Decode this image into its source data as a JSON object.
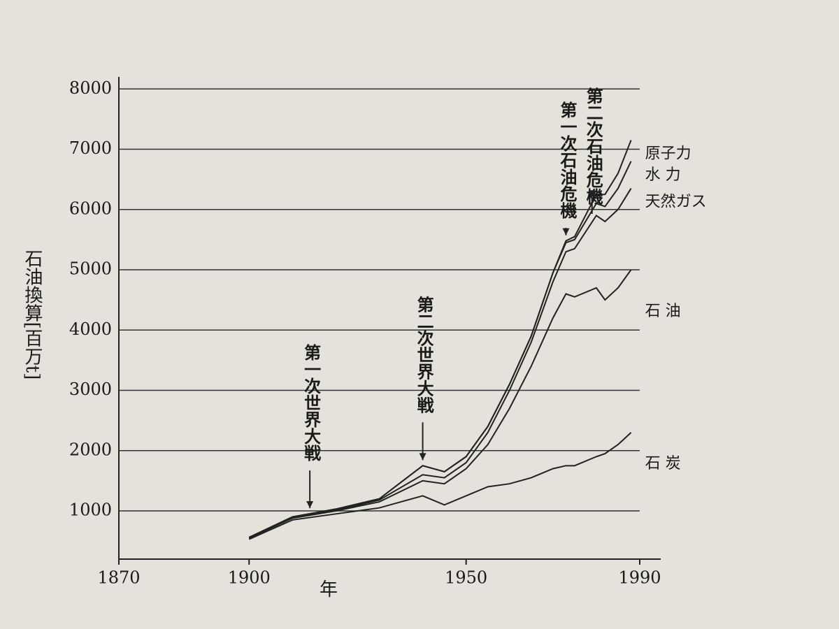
{
  "chart_data": {
    "type": "stacked-line",
    "y_label": "石油換算[百万t]",
    "x_label": "年",
    "x": [
      1900,
      1910,
      1920,
      1930,
      1940,
      1945,
      1950,
      1955,
      1960,
      1965,
      1970,
      1973,
      1975,
      1980,
      1982,
      1985,
      1988
    ],
    "series": [
      {
        "name": "石 炭",
        "color": "#222222",
        "values": [
          530,
          850,
          950,
          1050,
          1250,
          1100,
          1250,
          1400,
          1450,
          1550,
          1700,
          1750,
          1750,
          1900,
          1950,
          2100,
          2300
        ]
      },
      {
        "name": "石 油",
        "color": "#222222",
        "values": [
          20,
          30,
          50,
          100,
          250,
          350,
          450,
          700,
          1250,
          1850,
          2500,
          2850,
          2800,
          2800,
          2550,
          2600,
          2700
        ]
      },
      {
        "name": "天然ガス",
        "color": "#222222",
        "values": [
          5,
          10,
          10,
          30,
          100,
          100,
          100,
          200,
          300,
          400,
          600,
          700,
          800,
          1200,
          1300,
          1300,
          1350
        ]
      },
      {
        "name": "水 力",
        "color": "#222222",
        "values": [
          5,
          10,
          20,
          20,
          150,
          100,
          100,
          100,
          100,
          100,
          150,
          150,
          150,
          200,
          250,
          350,
          450
        ]
      },
      {
        "name": "原子力",
        "color": "#222222",
        "values": [
          0,
          0,
          0,
          0,
          0,
          0,
          0,
          0,
          0,
          0,
          0,
          30,
          50,
          150,
          200,
          250,
          350
        ]
      }
    ],
    "annotations": [
      {
        "text": "第一次世界大戦",
        "x": 1914
      },
      {
        "text": "第二次世界大戦",
        "x": 1940
      },
      {
        "text": "第一次石油危機",
        "x": 1973
      },
      {
        "text": "第二次石油危機",
        "x": 1979
      }
    ],
    "xlim": [
      1870,
      1990
    ],
    "xticks": [
      1870,
      1900,
      1950,
      1990
    ],
    "ylim": [
      200,
      8200
    ],
    "yticks": [
      1000,
      2000,
      3000,
      4000,
      5000,
      6000,
      7000,
      8000
    ],
    "grid": true
  }
}
